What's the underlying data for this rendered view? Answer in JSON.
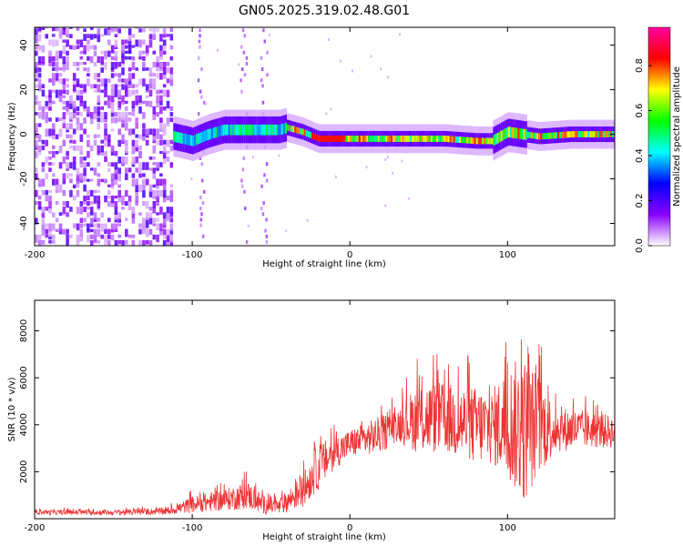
{
  "title": "GN05.2025.319.02.48.G01",
  "chart_data": [
    {
      "type": "heatmap",
      "xlabel": "Height of straight line (km)",
      "ylabel": "Frequency (Hz)",
      "xlim": [
        -200,
        168
      ],
      "ylim": [
        -50,
        48
      ],
      "xticks": [
        -200,
        -100,
        0,
        100
      ],
      "yticks": [
        -40,
        -20,
        0,
        20,
        40
      ],
      "colorbar": {
        "label": "Normalized spectral amplitude",
        "ticks": [
          0.0,
          0.2,
          0.4,
          0.6,
          0.8
        ],
        "range": [
          0,
          0.97
        ],
        "colors": [
          "#ffffff",
          "#8a00ff",
          "#0000ff",
          "#00ffff",
          "#00ff00",
          "#ffff00",
          "#ff0000",
          "#ff00a0"
        ]
      },
      "ridge_center": [
        [
          -112,
          -1
        ],
        [
          -100,
          -3
        ],
        [
          -90,
          0
        ],
        [
          -80,
          2
        ],
        [
          -65,
          2
        ],
        [
          -55,
          2
        ],
        [
          -45,
          2
        ],
        [
          -40,
          3
        ],
        [
          -30,
          1
        ],
        [
          -20,
          -2
        ],
        [
          -10,
          -2
        ],
        [
          0,
          -2
        ],
        [
          10,
          -2
        ],
        [
          20,
          -2
        ],
        [
          40,
          -2
        ],
        [
          60,
          -2
        ],
        [
          80,
          -3
        ],
        [
          90,
          -3
        ],
        [
          100,
          1
        ],
        [
          110,
          0
        ],
        [
          120,
          -1
        ],
        [
          140,
          0
        ],
        [
          160,
          0
        ],
        [
          168,
          0
        ]
      ]
    },
    {
      "type": "line",
      "xlabel": "Height of straight line (km)",
      "ylabel": "SNR (10 * v/v)",
      "xlim": [
        -200,
        168
      ],
      "ylim": [
        0,
        9300
      ],
      "xticks": [
        -200,
        -100,
        0,
        100
      ],
      "yticks": [
        2000,
        4000,
        6000,
        8000
      ],
      "color": "#ee3333",
      "envelope": [
        {
          "x": -200,
          "mean": 280,
          "amp": 100
        },
        {
          "x": -150,
          "mean": 260,
          "amp": 110
        },
        {
          "x": -115,
          "mean": 320,
          "amp": 150
        },
        {
          "x": -100,
          "mean": 600,
          "amp": 350
        },
        {
          "x": -80,
          "mean": 800,
          "amp": 450
        },
        {
          "x": -65,
          "mean": 1000,
          "amp": 600
        },
        {
          "x": -55,
          "mean": 600,
          "amp": 400
        },
        {
          "x": -45,
          "mean": 500,
          "amp": 350
        },
        {
          "x": -30,
          "mean": 1200,
          "amp": 700
        },
        {
          "x": -20,
          "mean": 2200,
          "amp": 1000
        },
        {
          "x": -10,
          "mean": 2800,
          "amp": 700
        },
        {
          "x": 0,
          "mean": 3200,
          "amp": 600
        },
        {
          "x": 10,
          "mean": 3400,
          "amp": 700
        },
        {
          "x": 20,
          "mean": 3600,
          "amp": 800
        },
        {
          "x": 30,
          "mean": 4000,
          "amp": 700
        },
        {
          "x": 45,
          "mean": 4300,
          "amp": 1600
        },
        {
          "x": 60,
          "mean": 4300,
          "amp": 1500
        },
        {
          "x": 75,
          "mean": 4000,
          "amp": 1700
        },
        {
          "x": 90,
          "mean": 3900,
          "amp": 1600
        },
        {
          "x": 100,
          "mean": 4100,
          "amp": 2400
        },
        {
          "x": 110,
          "mean": 3800,
          "amp": 3200
        },
        {
          "x": 120,
          "mean": 4000,
          "amp": 2200
        },
        {
          "x": 130,
          "mean": 3800,
          "amp": 1000
        },
        {
          "x": 150,
          "mean": 3800,
          "amp": 800
        },
        {
          "x": 168,
          "mean": 3700,
          "amp": 700
        }
      ]
    }
  ]
}
